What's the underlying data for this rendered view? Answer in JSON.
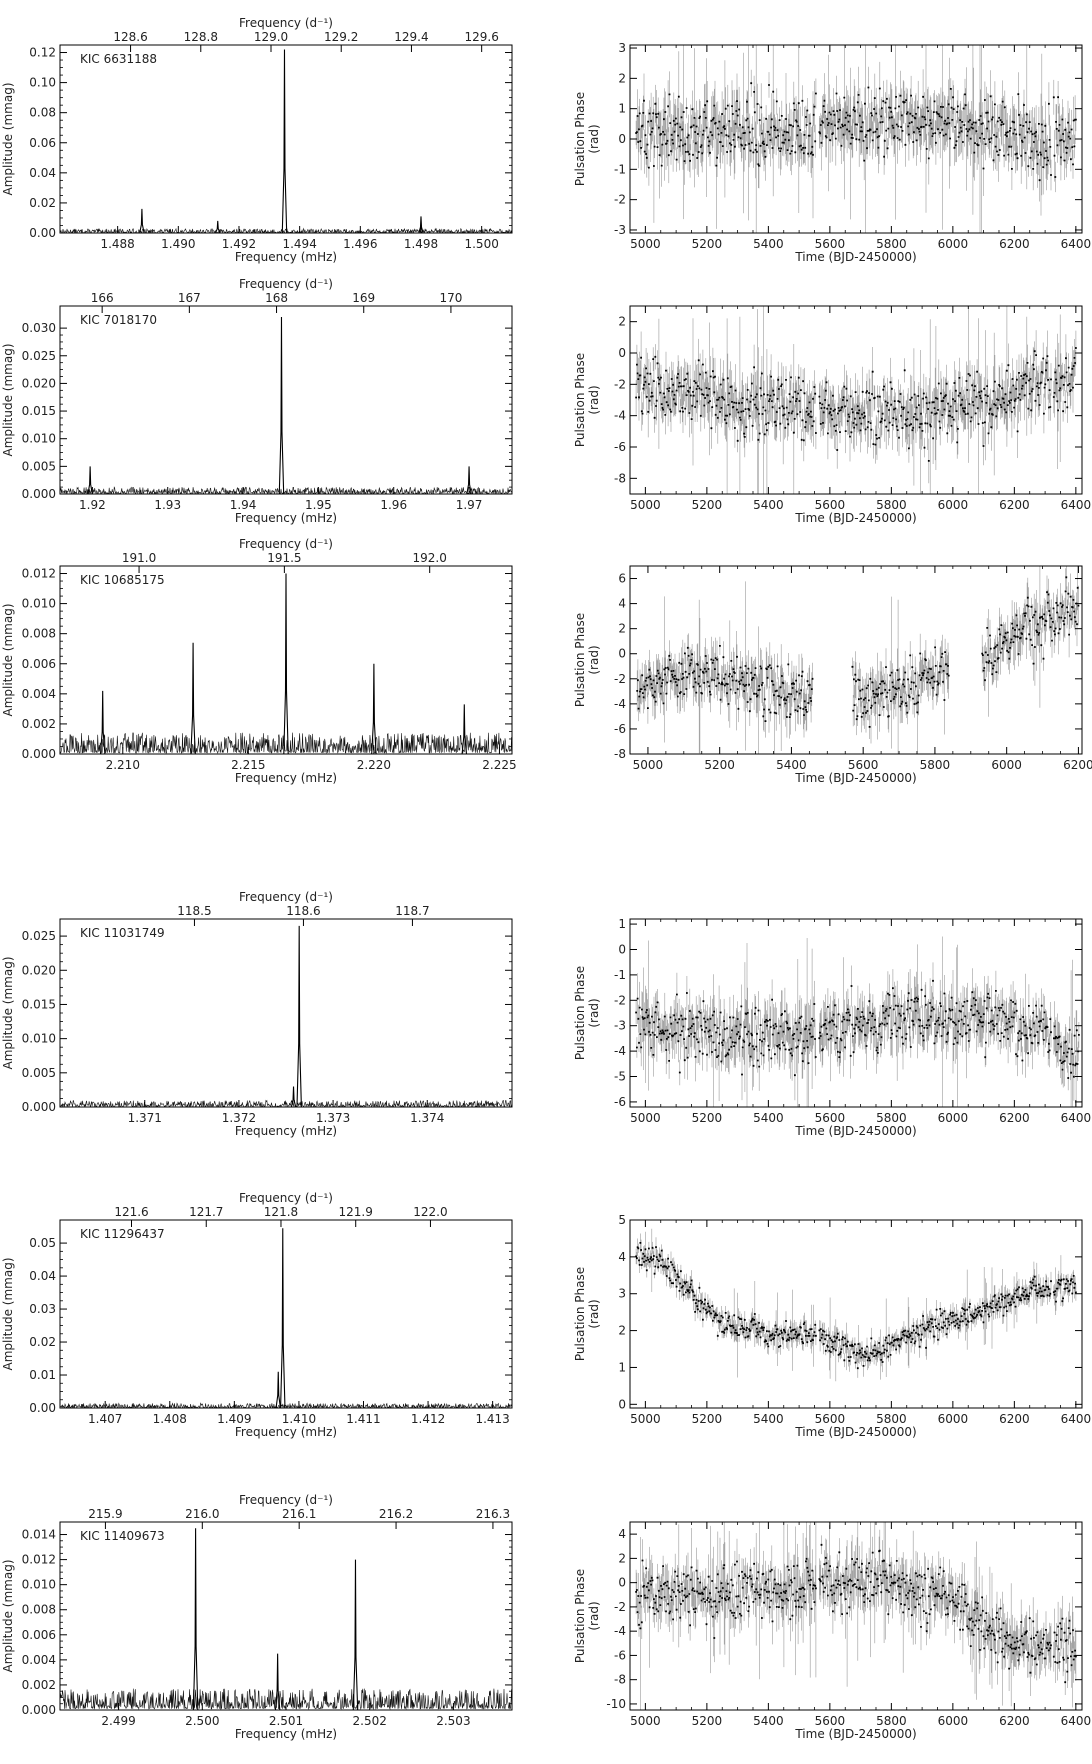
{
  "chart_data": [
    {
      "type": "line",
      "label": "KIC 6631188",
      "xlabel": "Frequency (mHz)",
      "ylabel": "Amplitude (mmag)",
      "x2label": "Frequency (d⁻¹)",
      "xlim": [
        1.4861,
        1.501
      ],
      "ylim": [
        0,
        0.125
      ],
      "xticks": [
        1.488,
        1.49,
        1.492,
        1.494,
        1.496,
        1.498,
        1.5
      ],
      "xtick_labels": [
        "1.488",
        "1.490",
        "1.492",
        "1.494",
        "1.496",
        "1.498",
        "1.500"
      ],
      "yticks": [
        0,
        0.02,
        0.04,
        0.06,
        0.08,
        0.1,
        0.12
      ],
      "ytick_labels": [
        "0.00",
        "0.02",
        "0.04",
        "0.06",
        "0.08",
        "0.10",
        "0.12"
      ],
      "x2ticks": [
        128.6,
        128.8,
        129.0,
        129.2,
        129.4,
        129.6
      ],
      "x2tick_labels": [
        "128.6",
        "128.8",
        "129.0",
        "129.2",
        "129.4",
        "129.6"
      ],
      "peaks": [
        {
          "x": 1.4888,
          "y": 0.016
        },
        {
          "x": 1.4913,
          "y": 0.008
        },
        {
          "x": 1.4935,
          "y": 0.122
        },
        {
          "x": 1.498,
          "y": 0.011
        }
      ],
      "noise": 0.003
    },
    {
      "type": "line",
      "label": "KIC 7018170",
      "xlabel": "Frequency (mHz)",
      "ylabel": "Amplitude (mmag)",
      "x2label": "Frequency (d⁻¹)",
      "xlim": [
        1.9157,
        1.9757
      ],
      "ylim": [
        0,
        0.034
      ],
      "xticks": [
        1.92,
        1.93,
        1.94,
        1.95,
        1.96,
        1.97
      ],
      "xtick_labels": [
        "1.92",
        "1.93",
        "1.94",
        "1.95",
        "1.96",
        "1.97"
      ],
      "yticks": [
        0,
        0.005,
        0.01,
        0.015,
        0.02,
        0.025,
        0.03
      ],
      "ytick_labels": [
        "0.000",
        "0.005",
        "0.010",
        "0.015",
        "0.020",
        "0.025",
        "0.030"
      ],
      "x2ticks": [
        166,
        167,
        168,
        169,
        170
      ],
      "x2tick_labels": [
        "166",
        "167",
        "168",
        "169",
        "170"
      ],
      "peaks": [
        {
          "x": 1.9197,
          "y": 0.005
        },
        {
          "x": 1.9451,
          "y": 0.032
        },
        {
          "x": 1.97,
          "y": 0.005
        }
      ],
      "noise": 0.0013
    },
    {
      "type": "line",
      "label": "KIC 10685175",
      "xlabel": "Frequency (mHz)",
      "ylabel": "Amplitude (mmag)",
      "x2label": "Frequency (d⁻¹)",
      "xlim": [
        2.2075,
        2.2255
      ],
      "ylim": [
        0,
        0.0125
      ],
      "xticks": [
        2.21,
        2.215,
        2.22,
        2.225
      ],
      "xtick_labels": [
        "2.210",
        "2.215",
        "2.220",
        "2.225"
      ],
      "yticks": [
        0,
        0.002,
        0.004,
        0.006,
        0.008,
        0.01,
        0.012
      ],
      "ytick_labels": [
        "0.000",
        "0.002",
        "0.004",
        "0.006",
        "0.008",
        "0.010",
        "0.012"
      ],
      "x2ticks": [
        191.0,
        191.5,
        192.0
      ],
      "x2tick_labels": [
        "191.0",
        "191.5",
        "192.0"
      ],
      "peaks": [
        {
          "x": 2.2092,
          "y": 0.0042
        },
        {
          "x": 2.2128,
          "y": 0.0074
        },
        {
          "x": 2.2165,
          "y": 0.012
        },
        {
          "x": 2.22,
          "y": 0.006
        },
        {
          "x": 2.2236,
          "y": 0.0033
        }
      ],
      "noise": 0.0015
    },
    {
      "type": "line",
      "label": "KIC 11031749",
      "xlabel": "Frequency (mHz)",
      "ylabel": "Amplitude (mmag)",
      "x2label": "Frequency (d⁻¹)",
      "xlim": [
        1.3701,
        1.3749
      ],
      "ylim": [
        0,
        0.0275
      ],
      "xticks": [
        1.371,
        1.372,
        1.373,
        1.374
      ],
      "xtick_labels": [
        "1.371",
        "1.372",
        "1.373",
        "1.374"
      ],
      "yticks": [
        0,
        0.005,
        0.01,
        0.015,
        0.02,
        0.025
      ],
      "ytick_labels": [
        "0.000",
        "0.005",
        "0.010",
        "0.015",
        "0.020",
        "0.025"
      ],
      "x2ticks": [
        118.5,
        118.6,
        118.7
      ],
      "x2tick_labels": [
        "118.5",
        "118.6",
        "118.7"
      ],
      "peaks": [
        {
          "x": 1.37264,
          "y": 0.0265
        },
        {
          "x": 1.37258,
          "y": 0.003
        }
      ],
      "noise": 0.001
    },
    {
      "type": "line",
      "label": "KIC 11296437",
      "xlabel": "Frequency (mHz)",
      "ylabel": "Amplitude (mmag)",
      "x2label": "Frequency (d⁻¹)",
      "xlim": [
        1.4063,
        1.4133
      ],
      "ylim": [
        0,
        0.057
      ],
      "xticks": [
        1.407,
        1.408,
        1.409,
        1.41,
        1.411,
        1.412,
        1.413
      ],
      "xtick_labels": [
        "1.407",
        "1.408",
        "1.409",
        "1.410",
        "1.411",
        "1.412",
        "1.413"
      ],
      "yticks": [
        0,
        0.01,
        0.02,
        0.03,
        0.04,
        0.05
      ],
      "ytick_labels": [
        "0.00",
        "0.01",
        "0.02",
        "0.03",
        "0.04",
        "0.05"
      ],
      "x2ticks": [
        121.6,
        121.7,
        121.8,
        121.9,
        122.0
      ],
      "x2tick_labels": [
        "121.6",
        "121.7",
        "121.8",
        "121.9",
        "122.0"
      ],
      "peaks": [
        {
          "x": 1.40975,
          "y": 0.0545
        },
        {
          "x": 1.40968,
          "y": 0.011
        }
      ],
      "noise": 0.0015
    },
    {
      "type": "line",
      "label": "KIC 11409673",
      "xlabel": "Frequency (mHz)",
      "ylabel": "Amplitude (mmag)",
      "x2label": "Frequency (d⁻¹)",
      "xlim": [
        2.4983,
        2.5037
      ],
      "ylim": [
        0,
        0.015
      ],
      "xticks": [
        2.499,
        2.5,
        2.501,
        2.502,
        2.503
      ],
      "xtick_labels": [
        "2.499",
        "2.500",
        "2.501",
        "2.502",
        "2.503"
      ],
      "yticks": [
        0,
        0.002,
        0.004,
        0.006,
        0.008,
        0.01,
        0.012,
        0.014
      ],
      "ytick_labels": [
        "0.000",
        "0.002",
        "0.004",
        "0.006",
        "0.008",
        "0.010",
        "0.012",
        "0.014"
      ],
      "x2ticks": [
        215.9,
        216.0,
        216.1,
        216.2,
        216.3
      ],
      "x2tick_labels": [
        "215.9",
        "216.0",
        "216.1",
        "216.2",
        "216.3"
      ],
      "peaks": [
        {
          "x": 2.49992,
          "y": 0.0145
        },
        {
          "x": 2.5009,
          "y": 0.0045
        },
        {
          "x": 2.50183,
          "y": 0.012
        }
      ],
      "noise": 0.0018
    },
    {
      "type": "scatter",
      "xlabel": "Time (BJD-2450000)",
      "ylabel": "Pulsation Phase (rad)",
      "xlim": [
        4950,
        6420
      ],
      "ylim": [
        -3.1,
        3.1
      ],
      "xticks": [
        5000,
        5200,
        5400,
        5600,
        5800,
        6000,
        6200,
        6400
      ],
      "xtick_labels": [
        "5000",
        "5200",
        "5400",
        "5600",
        "5800",
        "6000",
        "6200",
        "6400"
      ],
      "yticks": [
        -3,
        -2,
        -1,
        0,
        1,
        2,
        3
      ],
      "ytick_labels": [
        "-3",
        "-2",
        "-1",
        "0",
        "1",
        "2",
        "3"
      ],
      "trend": [
        [
          4970,
          0.1
        ],
        [
          5200,
          0.3
        ],
        [
          5500,
          0.3
        ],
        [
          5800,
          0.6
        ],
        [
          6000,
          0.5
        ],
        [
          6200,
          0.1
        ],
        [
          6400,
          0.0
        ]
      ],
      "gaps": [
        [
          5555,
          5565
        ],
        [
          6320,
          6328
        ]
      ],
      "scatter": 0.55
    },
    {
      "type": "scatter",
      "xlabel": "Time (BJD-2450000)",
      "ylabel": "Pulsation Phase (rad)",
      "xlim": [
        4950,
        6420
      ],
      "ylim": [
        -9,
        3
      ],
      "xticks": [
        5000,
        5200,
        5400,
        5600,
        5800,
        6000,
        6200,
        6400
      ],
      "xtick_labels": [
        "5000",
        "5200",
        "5400",
        "5600",
        "5800",
        "6000",
        "6200",
        "6400"
      ],
      "yticks": [
        -8,
        -6,
        -4,
        -2,
        0,
        2
      ],
      "ytick_labels": [
        "-8",
        "-6",
        "-4",
        "-2",
        "0",
        "2"
      ],
      "trend": [
        [
          4970,
          -2.0
        ],
        [
          5100,
          -2.6
        ],
        [
          5300,
          -3.4
        ],
        [
          5500,
          -3.6
        ],
        [
          5700,
          -3.8
        ],
        [
          5900,
          -3.8
        ],
        [
          6100,
          -3.3
        ],
        [
          6250,
          -2.3
        ],
        [
          6400,
          -1.6
        ]
      ],
      "gaps": [
        [
          5555,
          5565
        ],
        [
          6320,
          6328
        ]
      ],
      "scatter": 1.0
    },
    {
      "type": "scatter",
      "xlabel": "Time (BJD-2450000)",
      "ylabel": "Pulsation Phase (rad)",
      "xlim": [
        4950,
        6210
      ],
      "ylim": [
        -8,
        7
      ],
      "xticks": [
        5000,
        5200,
        5400,
        5600,
        5800,
        6000,
        6200
      ],
      "xtick_labels": [
        "5000",
        "5200",
        "5400",
        "5600",
        "5800",
        "6000",
        "6200"
      ],
      "yticks": [
        -8,
        -6,
        -4,
        -2,
        0,
        2,
        4,
        6
      ],
      "ytick_labels": [
        "-8",
        "-6",
        "-4",
        "-2",
        "0",
        "2",
        "4",
        "6"
      ],
      "trend": [
        [
          4970,
          -2.8
        ],
        [
          5100,
          -1.8
        ],
        [
          5250,
          -2.0
        ],
        [
          5440,
          -3.4
        ],
        [
          5580,
          -3.5
        ],
        [
          5700,
          -2.6
        ],
        [
          5830,
          -1.2
        ],
        [
          5940,
          -0.3
        ],
        [
          6050,
          1.8
        ],
        [
          6200,
          3.8
        ]
      ],
      "gaps": [
        [
          5460,
          5570
        ],
        [
          5840,
          5930
        ]
      ],
      "scatter": 1.1
    },
    {
      "type": "scatter",
      "xlabel": "Time (BJD-2450000)",
      "ylabel": "Pulsation Phase (rad)",
      "xlim": [
        4950,
        6420
      ],
      "ylim": [
        -6.2,
        1.2
      ],
      "xticks": [
        5000,
        5200,
        5400,
        5600,
        5800,
        6000,
        6200,
        6400
      ],
      "xtick_labels": [
        "5000",
        "5200",
        "5400",
        "5600",
        "5800",
        "6000",
        "6200",
        "6400"
      ],
      "yticks": [
        -6,
        -5,
        -4,
        -3,
        -2,
        -1,
        0,
        1
      ],
      "ytick_labels": [
        "-6",
        "-5",
        "-4",
        "-3",
        "-2",
        "-1",
        "0",
        "1"
      ],
      "trend": [
        [
          4970,
          -2.8
        ],
        [
          5200,
          -3.3
        ],
        [
          5500,
          -3.4
        ],
        [
          5700,
          -3.0
        ],
        [
          5900,
          -2.6
        ],
        [
          6100,
          -2.7
        ],
        [
          6300,
          -3.2
        ],
        [
          6410,
          -4.4
        ]
      ],
      "gaps": [
        [
          5555,
          5565
        ],
        [
          6320,
          6328
        ]
      ],
      "scatter": 0.6
    },
    {
      "type": "scatter",
      "xlabel": "Time (BJD-2450000)",
      "ylabel": "Pulsation Phase (rad)",
      "xlim": [
        4950,
        6420
      ],
      "ylim": [
        -0.1,
        5.0
      ],
      "xticks": [
        5000,
        5200,
        5400,
        5600,
        5800,
        6000,
        6200,
        6400
      ],
      "xtick_labels": [
        "5000",
        "5200",
        "5400",
        "5600",
        "5800",
        "6000",
        "6200",
        "6400"
      ],
      "yticks": [
        0,
        1,
        2,
        3,
        4,
        5
      ],
      "ytick_labels": [
        "0",
        "1",
        "2",
        "3",
        "4",
        "5"
      ],
      "trend": [
        [
          4970,
          4.1
        ],
        [
          5050,
          3.8
        ],
        [
          5150,
          3.0
        ],
        [
          5250,
          2.2
        ],
        [
          5400,
          1.9
        ],
        [
          5550,
          1.9
        ],
        [
          5720,
          1.3
        ],
        [
          5850,
          1.8
        ],
        [
          6000,
          2.3
        ],
        [
          6150,
          2.7
        ],
        [
          6250,
          3.1
        ],
        [
          6400,
          3.2
        ]
      ],
      "gaps": [
        [
          5555,
          5565
        ],
        [
          6320,
          6328
        ]
      ],
      "scatter": 0.18
    },
    {
      "type": "scatter",
      "xlabel": "Time (BJD-2450000)",
      "ylabel": "Pulsation Phase (rad)",
      "xlim": [
        4950,
        6420
      ],
      "ylim": [
        -10.5,
        5
      ],
      "xticks": [
        5000,
        5200,
        5400,
        5600,
        5800,
        6000,
        6200,
        6400
      ],
      "xtick_labels": [
        "5000",
        "5200",
        "5400",
        "5600",
        "5800",
        "6000",
        "6200",
        "6400"
      ],
      "yticks": [
        -10,
        -8,
        -6,
        -4,
        -2,
        0,
        2,
        4
      ],
      "ytick_labels": [
        "-10",
        "-8",
        "-6",
        "-4",
        "-2",
        "0",
        "2",
        "4"
      ],
      "trend": [
        [
          4970,
          -1.0
        ],
        [
          5200,
          -1.2
        ],
        [
          5400,
          -0.6
        ],
        [
          5600,
          0.0
        ],
        [
          5800,
          0.1
        ],
        [
          6000,
          -1.2
        ],
        [
          6100,
          -3.8
        ],
        [
          6250,
          -5.0
        ],
        [
          6400,
          -5.9
        ]
      ],
      "gaps": [
        [
          5555,
          5565
        ],
        [
          6320,
          6328
        ]
      ],
      "scatter": 1.2
    }
  ]
}
